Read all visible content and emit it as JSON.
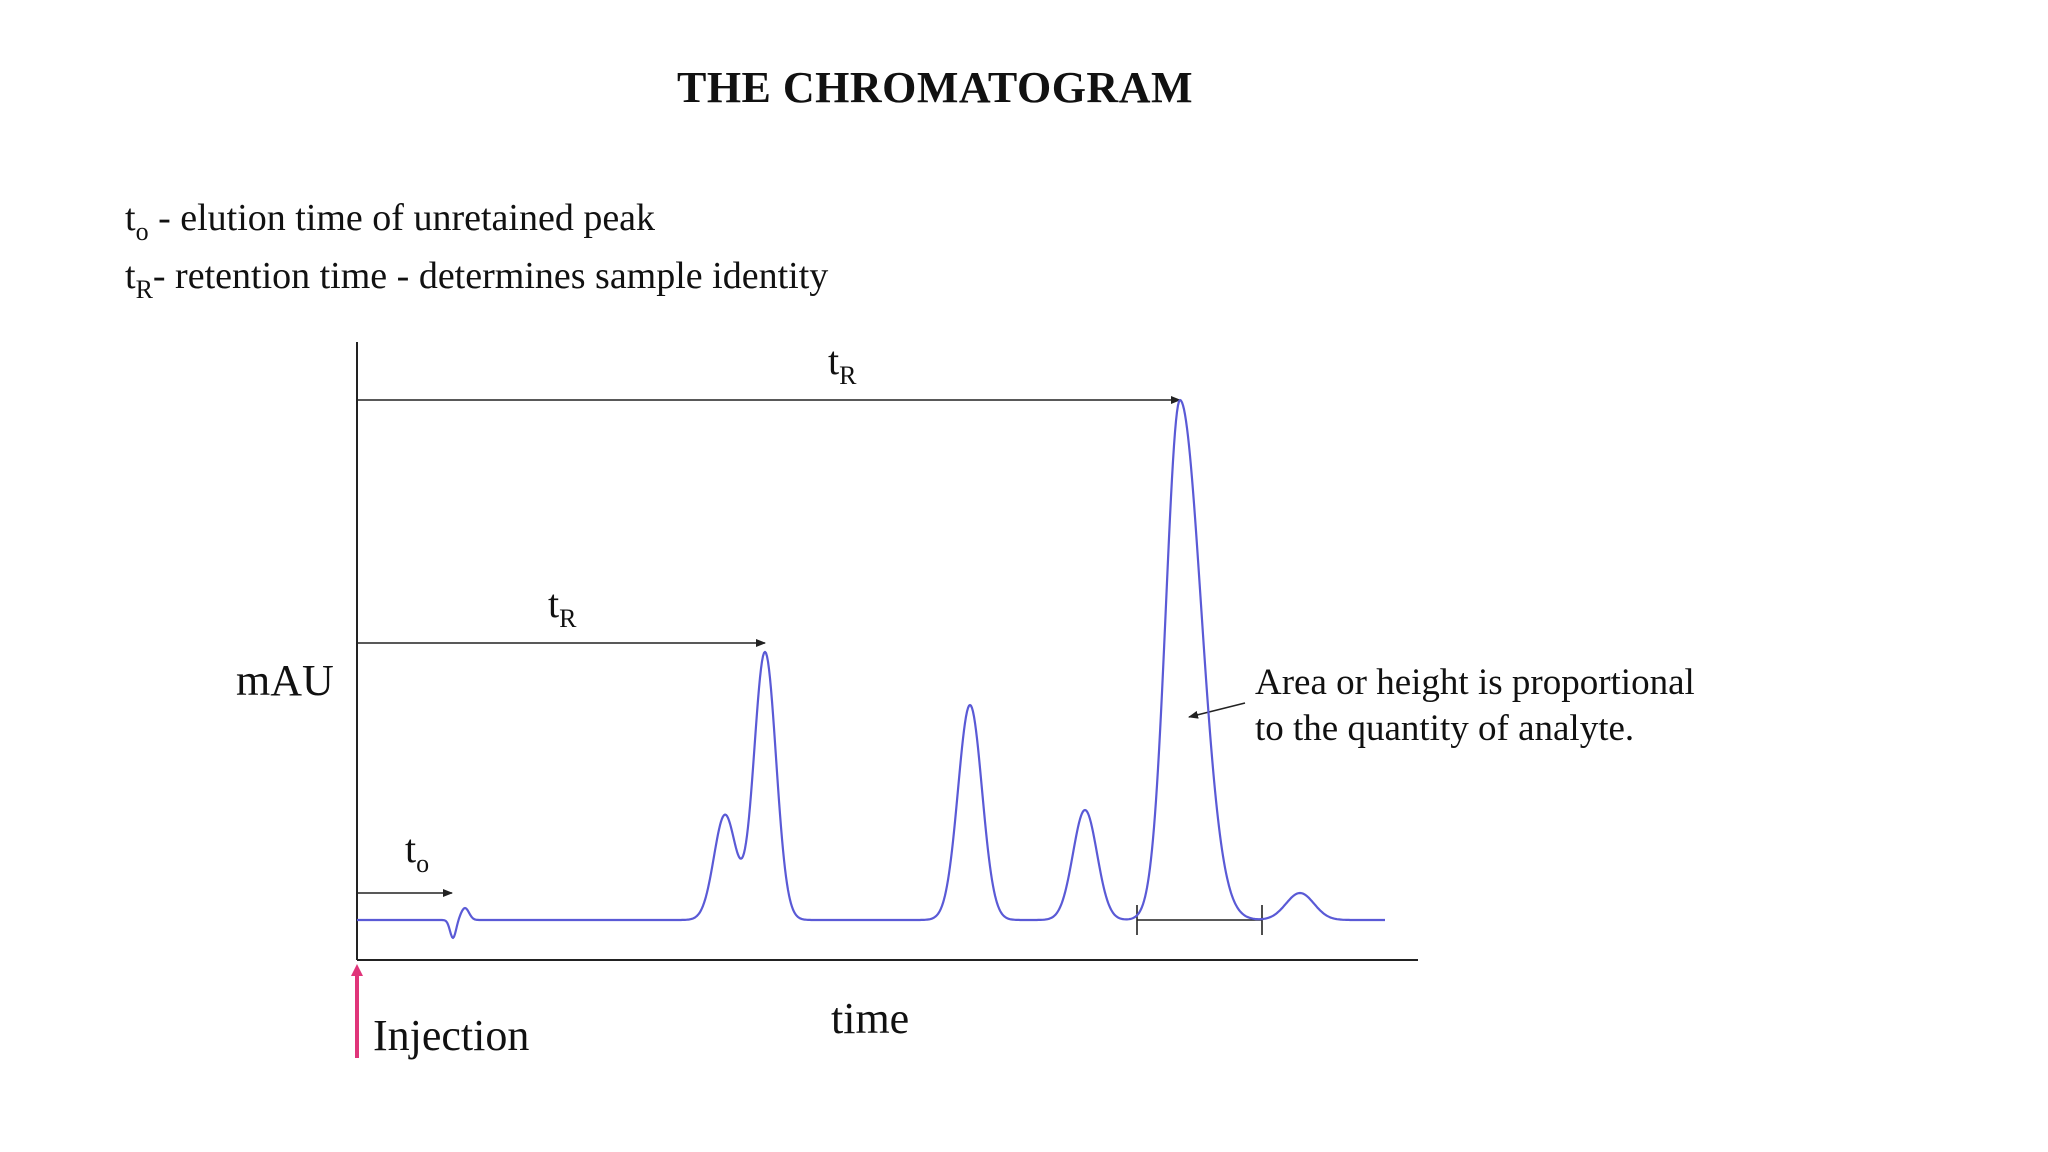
{
  "title": "THE CHROMATOGRAM",
  "definitions": [
    {
      "symbol": "t",
      "subscript": "o",
      "text": " - elution time of unretained peak"
    },
    {
      "symbol": "t",
      "subscript": "R",
      "text": "-  retention time - determines sample identity"
    }
  ],
  "diagram": {
    "y_axis_label": "mAU",
    "x_axis_label": "time",
    "injection_label": "Injection",
    "markers": {
      "tR_long": {
        "symbol": "t",
        "subscript": "R"
      },
      "tR_short": {
        "symbol": "t",
        "subscript": "R"
      },
      "t0": {
        "symbol": "t",
        "subscript": "o"
      }
    },
    "annotation": [
      "Area or height is proportional",
      "to the quantity of analyte."
    ],
    "colors": {
      "trace": "#5a5ad6",
      "axes": "#222222",
      "injection_marker": "#e0357a"
    }
  }
}
